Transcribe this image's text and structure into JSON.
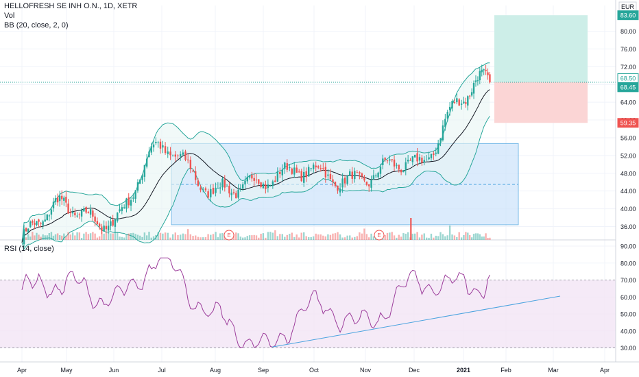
{
  "header": {
    "symbol": "HELLOFRESH SE INH O.N., 1D, XETR",
    "volume_label": "Vol",
    "bb_label": "BB (20, close, 2, 0)",
    "rsi_label": "RSI (14, close)",
    "currency": "EUR"
  },
  "colors": {
    "up": "#26a69a",
    "down": "#ef5350",
    "bb_band": "#26a69a",
    "bb_basis": "#131722",
    "bb_fill": "#e8f5f3",
    "range_box": "#cfe5fb",
    "range_border": "#4aa3df",
    "rsi_line": "#9c3d9b",
    "rsi_band": "#f3e5f5",
    "trendline": "#4aa3df",
    "target_zone": "#cdeee8",
    "stop_zone": "#fbd5d5",
    "last_price_line": "#26a69a"
  },
  "price_labels": {
    "target": "83.60",
    "entry": "68.50",
    "last": "68.45",
    "stop": "59.35"
  },
  "earnings_marker": "E",
  "chart_data": [
    {
      "type": "candlestick",
      "title": "HELLOFRESH SE INH O.N., 1D, XETR",
      "x_ticks": [
        "Apr",
        "May",
        "Jun",
        "Jul",
        "Aug",
        "Sep",
        "Oct",
        "Nov",
        "Dec",
        "2021",
        "Feb",
        "Mar",
        "Apr"
      ],
      "y_ticks": [
        36.0,
        40.0,
        44.0,
        48.0,
        52.0,
        56.0,
        60.0,
        64.0,
        68.0,
        72.0,
        76.0,
        80.0
      ],
      "ylim": [
        33.5,
        85.5
      ],
      "overlays": [
        "Bollinger Bands (20, close, 2, 0)",
        "Volume"
      ],
      "close_by_month": {
        "x": [
          "Apr",
          "May",
          "Jun",
          "Jul",
          "Aug",
          "Sep",
          "Oct",
          "Nov",
          "Dec",
          "2021"
        ],
        "y": [
          33.5,
          40.0,
          38.5,
          52.5,
          46.0,
          44.5,
          50.0,
          46.0,
          50.0,
          66.0
        ]
      },
      "consolidation_range": {
        "from": "Jul",
        "to": "Jan",
        "low": 36.4,
        "high": 54.7,
        "mid": 45.5
      },
      "position": {
        "entry": 68.5,
        "target": 83.6,
        "stop": 59.35,
        "last": 68.45
      },
      "earnings_dates": [
        "Aug",
        "Nov"
      ]
    },
    {
      "type": "line",
      "title": "RSI (14, close)",
      "y_ticks": [
        30.0,
        40.0,
        50.0,
        60.0,
        70.0,
        80.0,
        90.0
      ],
      "ylim": [
        28,
        92
      ],
      "band": [
        30,
        70
      ],
      "rsi_by_month": {
        "x": [
          "Apr",
          "May",
          "Jun",
          "Jul",
          "Aug",
          "Sep",
          "Oct",
          "Nov",
          "Dec",
          "2021"
        ],
        "y": [
          65,
          68,
          58,
          82,
          48,
          30,
          55,
          44,
          68,
          67
        ]
      },
      "trendline": {
        "start": 30.5,
        "end": 60.5
      }
    }
  ]
}
